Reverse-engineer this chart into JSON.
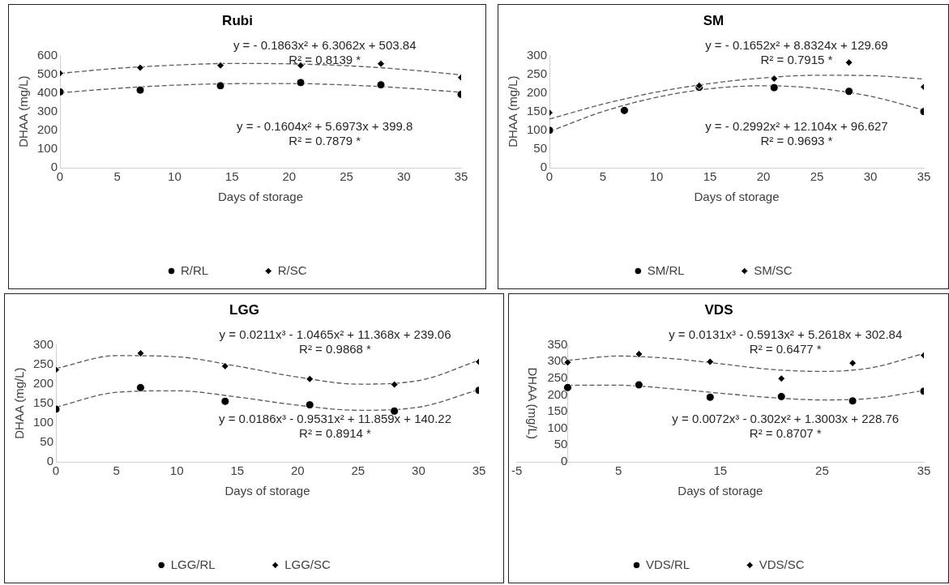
{
  "chart_data": [
    {
      "type": "scatter",
      "title": "Rubi",
      "xlabel": "Days of storage",
      "ylabel": "DHAA (mg/L)",
      "x": [
        0,
        7,
        14,
        21,
        28,
        35
      ],
      "xlim": [
        0,
        35
      ],
      "xticks": [
        0,
        5,
        10,
        15,
        20,
        25,
        30,
        35
      ],
      "ylim": [
        0,
        600
      ],
      "yticks": [
        0,
        100,
        200,
        300,
        400,
        500,
        600
      ],
      "grid": false,
      "legend": "bottom",
      "series": [
        {
          "name": "R/RL",
          "color": "#000000",
          "marker": "circle",
          "values": [
            405,
            415,
            438,
            455,
            443,
            392
          ]
        },
        {
          "name": "R/SC",
          "color": "#000000",
          "marker": "diamond",
          "values": [
            505,
            535,
            546,
            546,
            555,
            482
          ]
        },
        {
          "type": "line",
          "color": "#595959",
          "marker": "none",
          "line_style": "dashed",
          "x": [
            0,
            5,
            10,
            15,
            20,
            25,
            30,
            35
          ],
          "values": [
            400,
            424,
            441,
            449,
            450,
            442,
            426,
            403
          ]
        },
        {
          "type": "line",
          "color": "#595959",
          "marker": "none",
          "line_style": "dashed",
          "x": [
            0,
            5,
            10,
            15,
            20,
            25,
            30,
            35
          ],
          "values": [
            504,
            531,
            548,
            557,
            555,
            545,
            525,
            496
          ]
        }
      ],
      "annotations": [
        "y = - 0.1863x² + 6.3062x + 503.84",
        "R² = 0.8139 *",
        "y = - 0.1604x² + 5.6973x + 399.8",
        "R² = 0.7879 *"
      ]
    },
    {
      "type": "scatter",
      "title": "SM",
      "xlabel": "Days of storage",
      "ylabel": "DHAA (mg/L)",
      "x": [
        0,
        7,
        14,
        21,
        28,
        35
      ],
      "xlim": [
        0,
        35
      ],
      "xticks": [
        0,
        5,
        10,
        15,
        20,
        25,
        30,
        35
      ],
      "ylim": [
        0,
        300
      ],
      "yticks": [
        0,
        50,
        100,
        150,
        200,
        250,
        300
      ],
      "grid": false,
      "legend": "bottom",
      "series": [
        {
          "name": "SM/RL",
          "color": "#000000",
          "marker": "circle",
          "values": [
            100,
            153,
            215,
            214,
            204,
            150
          ]
        },
        {
          "name": "SM/SC",
          "color": "#000000",
          "marker": "diamond",
          "values": [
            147,
            null,
            219,
            238,
            281,
            216
          ]
        },
        {
          "type": "line",
          "color": "#595959",
          "marker": "none",
          "line_style": "dashed",
          "x": [
            0,
            5,
            10,
            15,
            20,
            25,
            30,
            35
          ],
          "values": [
            97,
            150,
            188,
            211,
            219,
            212,
            191,
            154
          ]
        },
        {
          "type": "line",
          "color": "#595959",
          "marker": "none",
          "line_style": "dashed",
          "x": [
            0,
            5,
            10,
            15,
            20,
            25,
            30,
            35
          ],
          "values": [
            130,
            170,
            202,
            225,
            240,
            247,
            246,
            237
          ]
        }
      ],
      "annotations": [
        "y = - 0.1652x² + 8.8324x + 129.69",
        "R² = 0.7915 *",
        "y = - 0.2992x² + 12.104x + 96.627",
        "R² = 0.9693 *"
      ]
    },
    {
      "type": "scatter",
      "title": "LGG",
      "xlabel": "Days of storage",
      "ylabel": "DHAA (mg/L)",
      "x": [
        0,
        7,
        14,
        21,
        28,
        35
      ],
      "xlim": [
        0,
        35
      ],
      "xticks": [
        0,
        5,
        10,
        15,
        20,
        25,
        30,
        35
      ],
      "ylim": [
        0,
        300
      ],
      "yticks": [
        0,
        50,
        100,
        150,
        200,
        250,
        300
      ],
      "grid": false,
      "legend": "bottom",
      "series": [
        {
          "name": "LGG/RL",
          "color": "#000000",
          "marker": "circle",
          "values": [
            135,
            190,
            155,
            146,
            130,
            183
          ]
        },
        {
          "name": "LGG/SC",
          "color": "#000000",
          "marker": "diamond",
          "values": [
            236,
            278,
            245,
            212,
            198,
            256
          ]
        },
        {
          "type": "line",
          "color": "#595959",
          "marker": "none",
          "line_style": "dashed",
          "x": [
            0,
            5,
            10,
            15,
            20,
            25,
            30,
            35
          ],
          "values": [
            140,
            178,
            182,
            166,
            145,
            132,
            140,
            185
          ]
        },
        {
          "type": "line",
          "color": "#595959",
          "marker": "none",
          "line_style": "dashed",
          "x": [
            0,
            5,
            10,
            15,
            20,
            25,
            30,
            35
          ],
          "values": [
            239,
            272,
            269,
            245,
            217,
            199,
            208,
            260
          ]
        }
      ],
      "annotations": [
        "y = 0.0211x³ - 1.0465x² + 11.368x + 239.06",
        "R² = 0.9868 *",
        "y = 0.0186x³ - 0.9531x² + 11.859x + 140.22",
        "R² = 0.8914 *"
      ]
    },
    {
      "type": "scatter",
      "title": "VDS",
      "xlabel": "Days of storage",
      "ylabel": "DHAA (mg/L)",
      "x": [
        0,
        7,
        14,
        21,
        28,
        35
      ],
      "xlim": [
        -5,
        35
      ],
      "xticks": [
        -5,
        5,
        15,
        25,
        35
      ],
      "ylim": [
        0,
        350
      ],
      "yticks": [
        0,
        50,
        100,
        150,
        200,
        250,
        300,
        350
      ],
      "grid": false,
      "legend": "bottom",
      "series": [
        {
          "name": "VDS/RL",
          "color": "#000000",
          "marker": "circle",
          "values": [
            222,
            230,
            193,
            195,
            182,
            211
          ]
        },
        {
          "name": "VDS/SC",
          "color": "#000000",
          "marker": "diamond",
          "values": [
            297,
            322,
            299,
            249,
            295,
            318
          ]
        },
        {
          "type": "line",
          "color": "#595959",
          "marker": "none",
          "line_style": "dashed",
          "x": [
            0,
            5,
            10,
            15,
            20,
            25,
            30,
            35
          ],
          "values": [
            229,
            229,
            219,
            205,
            192,
            185,
            190,
            213
          ]
        },
        {
          "type": "line",
          "color": "#595959",
          "marker": "none",
          "line_style": "dashed",
          "x": [
            0,
            5,
            10,
            15,
            20,
            25,
            30,
            35
          ],
          "values": [
            303,
            316,
            309,
            293,
            276,
            270,
            282,
            324
          ]
        }
      ],
      "annotations": [
        "y = 0.0131x³ - 0.5913x² + 5.2618x + 302.84",
        "R² = 0.6477 *",
        "y = 0.0072x³ - 0.302x² + 1.3003x + 228.76",
        "R² = 0.8707 *"
      ]
    }
  ]
}
